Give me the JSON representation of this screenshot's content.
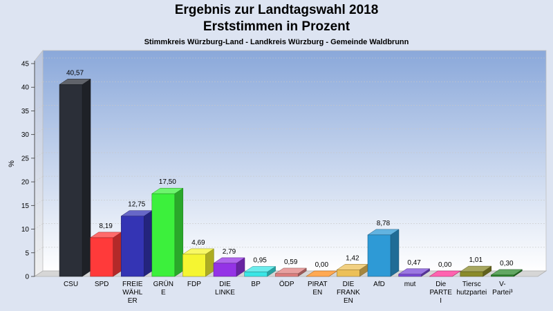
{
  "chart_data": {
    "type": "bar",
    "title": "Ergebnis zur Landtagswahl 2018",
    "subtitle": "Erststimmen in Prozent",
    "subsubtitle": "Stimmkreis Würzburg-Land - Landkreis Würzburg - Gemeinde Waldbrunn",
    "ylabel": "%",
    "xlabel": "",
    "ylim": [
      0,
      45
    ],
    "yticks": [
      0,
      5,
      10,
      15,
      20,
      25,
      30,
      35,
      40,
      45
    ],
    "grid": true,
    "categories": [
      [
        "CSU"
      ],
      [
        "SPD"
      ],
      [
        "FREIE",
        "WÄHL",
        "ER"
      ],
      [
        "GRÜN",
        "E"
      ],
      [
        "FDP"
      ],
      [
        "DIE",
        "LINKE"
      ],
      [
        "BP"
      ],
      [
        "ÖDP"
      ],
      [
        "PIRAT",
        "EN"
      ],
      [
        "DIE",
        "FRANK",
        "EN"
      ],
      [
        "AfD"
      ],
      [
        "mut"
      ],
      [
        "Die",
        "PARTE",
        "I"
      ],
      [
        "Tiersc",
        "hutzpartei"
      ],
      [
        "V-",
        "Partei³"
      ]
    ],
    "values": [
      40.57,
      8.19,
      12.75,
      17.5,
      4.69,
      2.79,
      0.95,
      0.59,
      0.0,
      1.42,
      8.78,
      0.47,
      0.0,
      1.01,
      0.3
    ],
    "value_labels": [
      "40,57",
      "8,19",
      "12,75",
      "17,50",
      "4,69",
      "2,79",
      "0,95",
      "0,59",
      "0,00",
      "1,42",
      "8,78",
      "0,47",
      "0,00",
      "1,01",
      "0,30"
    ],
    "colors": [
      "#2b2f38",
      "#ff3a3a",
      "#3434b4",
      "#3cf03c",
      "#f5f531",
      "#9433e6",
      "#3ae6e6",
      "#e08080",
      "#ff8c1a",
      "#ecc058",
      "#2e9ad6",
      "#7a4ad8",
      "#ff2f95",
      "#8a8a2a",
      "#2e8a2e"
    ]
  }
}
